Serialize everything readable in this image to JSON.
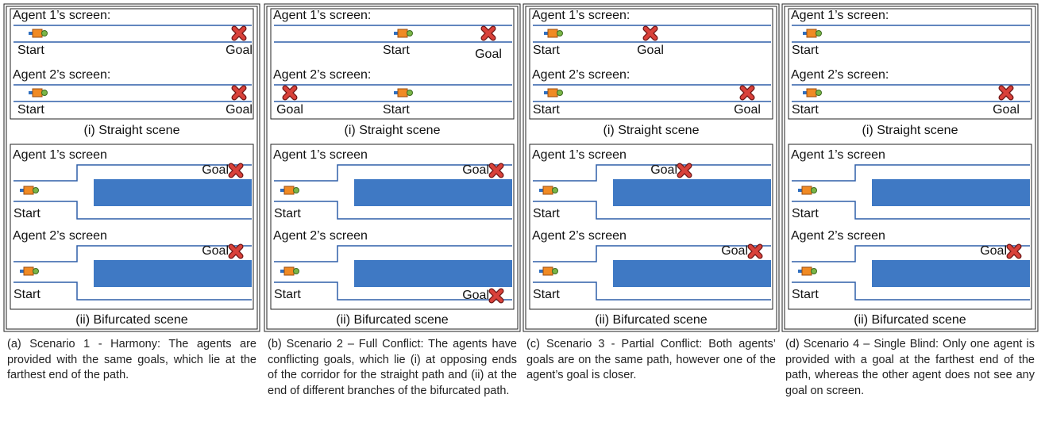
{
  "panels": [
    {
      "straight": {
        "title": "(i) Straight scene",
        "agents": [
          {
            "title": "Agent 1’s screen:",
            "start": "Start",
            "goal": "Goal"
          },
          {
            "title": "Agent 2’s screen:",
            "start": "Start",
            "goal": "Goal"
          }
        ]
      },
      "bifurcated": {
        "title": "(ii) Bifurcated scene",
        "agents": [
          {
            "title": "Agent 1’s screen",
            "start": "Start",
            "goal": "Goal"
          },
          {
            "title": "Agent 2’s screen",
            "start": "Start",
            "goal": "Goal"
          }
        ]
      },
      "caption": "(a) Scenario 1 - Harmony: The agents are provided with the same goals, which lie at the farthest end of the path."
    },
    {
      "straight": {
        "title": "(i) Straight scene",
        "agents": [
          {
            "title": "Agent 1’s screen:",
            "start": "Start",
            "goal": "Goal"
          },
          {
            "title": "Agent 2’s screen:",
            "start": "Start",
            "goal": "Goal"
          }
        ]
      },
      "bifurcated": {
        "title": "(ii) Bifurcated scene",
        "agents": [
          {
            "title": "Agent 1’s screen",
            "start": "Start",
            "goal": "Goal"
          },
          {
            "title": "Agent 2’s screen",
            "start": "Start",
            "goal": "Goal"
          }
        ]
      },
      "caption": "(b) Scenario 2 – Full Conflict: The agents have conflicting goals, which lie (i) at opposing ends of the corridor for the straight path and (ii) at the end of different branches of the bifurcated path."
    },
    {
      "straight": {
        "title": "(i) Straight scene",
        "agents": [
          {
            "title": "Agent 1’s screen:",
            "start": "Start",
            "goal": "Goal"
          },
          {
            "title": "Agent 2’s screen:",
            "start": "Start",
            "goal": "Goal"
          }
        ]
      },
      "bifurcated": {
        "title": "(ii) Bifurcated scene",
        "agents": [
          {
            "title": "Agent 1’s screen",
            "start": "Start",
            "goal": "Goal"
          },
          {
            "title": "Agent 2’s screen",
            "start": "Start",
            "goal": "Goal"
          }
        ]
      },
      "caption": "(c) Scenario 3 - Partial Conflict: Both agents’ goals are on the same path, however one of the agent’s goal is closer."
    },
    {
      "straight": {
        "title": "(i) Straight scene",
        "agents": [
          {
            "title": "Agent 1’s screen:",
            "start": "Start"
          },
          {
            "title": "Agent 2’s screen:",
            "start": "Start",
            "goal": "Goal"
          }
        ]
      },
      "bifurcated": {
        "title": "(ii) Bifurcated scene",
        "agents": [
          {
            "title": "Agent 1’s screen",
            "start": "Start"
          },
          {
            "title": "Agent 2’s screen",
            "start": "Start",
            "goal": "Goal"
          }
        ]
      },
      "caption": "(d) Scenario 4 – Single Blind: Only one agent is provided with a goal at the farthest end of the path, whereas the other agent does not see any goal on screen."
    }
  ]
}
